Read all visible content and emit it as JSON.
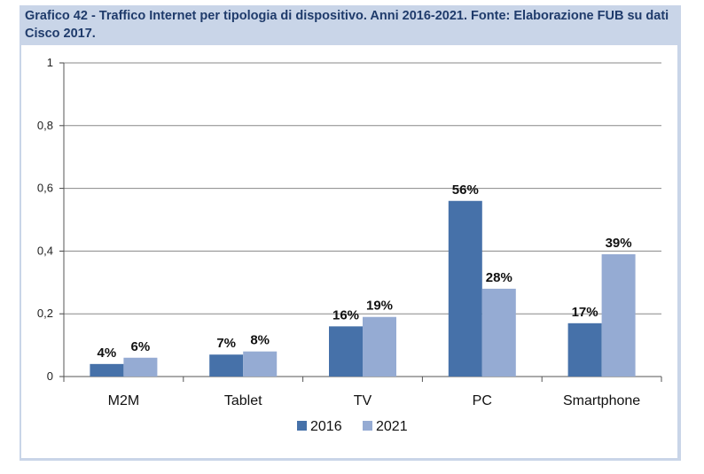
{
  "caption": "Grafico 42 - Traffico Internet per tipologia di dispositivo. Anni 2016-2021. Fonte: Elaborazione FUB su dati Cisco 2017.",
  "colors": {
    "frame": "#c9d5e8",
    "caption": "#1f3b6b",
    "s2016": "#4671a9",
    "s2021": "#95abd3",
    "grid": "#888888"
  },
  "chart_data": {
    "type": "bar",
    "title": "Grafico 42 - Traffico Internet per tipologia di dispositivo. Anni 2016-2021. Fonte: Elaborazione FUB su dati Cisco 2017.",
    "categories": [
      "M2M",
      "Tablet",
      "TV",
      "PC",
      "Smartphone"
    ],
    "series": [
      {
        "name": "2016",
        "values": [
          0.04,
          0.07,
          0.16,
          0.56,
          0.17
        ],
        "labels": [
          "4%",
          "7%",
          "16%",
          "56%",
          "17%"
        ]
      },
      {
        "name": "2021",
        "values": [
          0.06,
          0.08,
          0.19,
          0.28,
          0.39
        ],
        "labels": [
          "6%",
          "8%",
          "19%",
          "28%",
          "39%"
        ]
      }
    ],
    "yticks": [
      "0",
      "0,2",
      "0,4",
      "0,6",
      "0,8",
      "1"
    ],
    "ylim": [
      0,
      1
    ],
    "grid": true,
    "legend": "bottom-center",
    "xlabel": "",
    "ylabel": ""
  }
}
